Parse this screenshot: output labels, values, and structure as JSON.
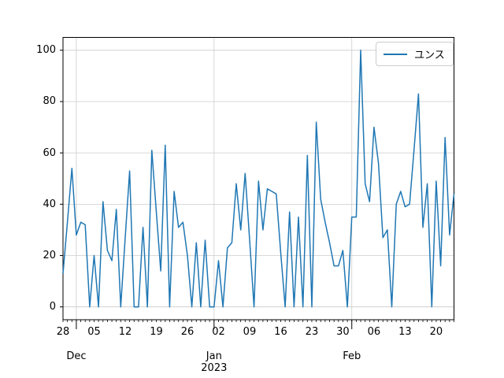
{
  "figure": {
    "background": "#ffffff",
    "axes_edge_color": "#000000",
    "grid_color": "#cccccc"
  },
  "legend": {
    "label": "ユンス",
    "line_color": "#1f77b4"
  },
  "y_axis": {
    "ticks": [
      0,
      20,
      40,
      60,
      80,
      100
    ]
  },
  "x_axis": {
    "week_tick_labels": [
      {
        "label": "28",
        "day": 0
      },
      {
        "label": "05",
        "day": 7
      },
      {
        "label": "12",
        "day": 14
      },
      {
        "label": "19",
        "day": 21
      },
      {
        "label": "26",
        "day": 28
      },
      {
        "label": "02",
        "day": 35
      },
      {
        "label": "09",
        "day": 42
      },
      {
        "label": "16",
        "day": 49
      },
      {
        "label": "23",
        "day": 56
      },
      {
        "label": "30",
        "day": 63
      },
      {
        "label": "06",
        "day": 70
      },
      {
        "label": "13",
        "day": 77
      },
      {
        "label": "20",
        "day": 84
      }
    ],
    "month_labels": [
      {
        "label": "Dec",
        "sublabel": "",
        "day": 3
      },
      {
        "label": "Jan",
        "sublabel": "2023",
        "day": 34
      },
      {
        "label": "Feb",
        "sublabel": "",
        "day": 65
      }
    ],
    "month_gridline_days": [
      3,
      34,
      65
    ]
  },
  "chart_data": {
    "type": "line",
    "title": "",
    "xlabel": "",
    "ylabel": "",
    "x_start_date": "2022-11-28",
    "x_end_date": "2023-02-24",
    "frequency": "daily",
    "n_points": 89,
    "ylim": [
      -5,
      105
    ],
    "grid": true,
    "legend_position": "upper right",
    "series": [
      {
        "name": "ユンス",
        "color": "#1f77b4",
        "line_width": 1.5,
        "values": [
          13,
          33,
          54,
          28,
          33,
          32,
          0,
          20,
          0,
          41,
          22,
          18,
          38,
          0,
          27,
          53,
          0,
          0,
          31,
          0,
          61,
          37,
          14,
          63,
          0,
          45,
          31,
          33,
          20,
          0,
          25,
          0,
          26,
          0,
          0,
          18,
          0,
          23,
          25,
          48,
          30,
          52,
          26,
          0,
          49,
          30,
          46,
          45,
          44,
          21,
          0,
          37,
          0,
          35,
          0,
          59,
          0,
          72,
          42,
          33,
          25,
          16,
          16,
          22,
          0,
          35,
          35,
          100,
          48,
          41,
          70,
          56,
          27,
          30,
          0,
          40,
          45,
          39,
          40,
          61,
          83,
          31,
          48,
          0,
          49,
          16,
          66,
          28,
          44
        ]
      }
    ]
  }
}
